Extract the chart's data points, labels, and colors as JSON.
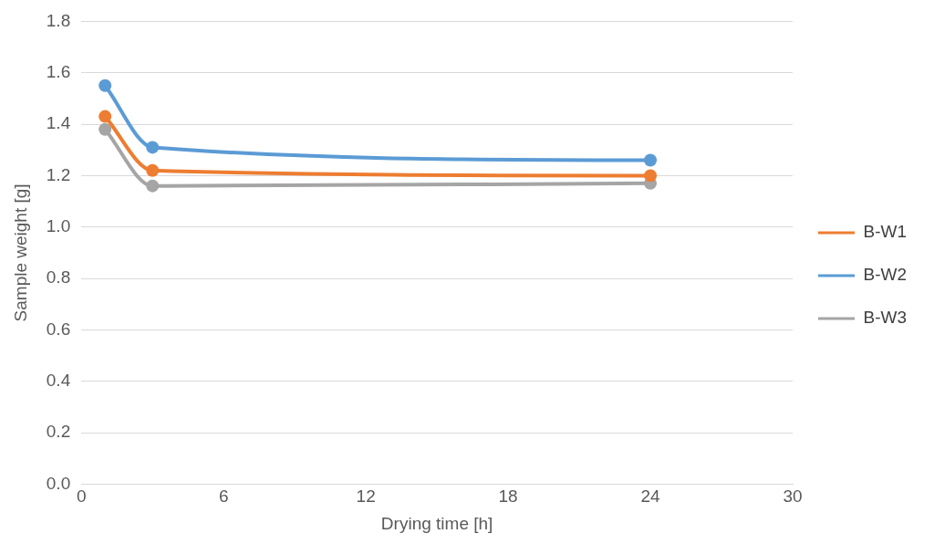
{
  "chart_data": {
    "type": "line",
    "xlabel": "Drying time [h]",
    "ylabel": "Sample weight [g]",
    "x": [
      1,
      3,
      24
    ],
    "series": [
      {
        "name": "B-W1",
        "color": "#ed7d31",
        "values": [
          1.43,
          1.22,
          1.2
        ]
      },
      {
        "name": "B-W2",
        "color": "#5b9bd5",
        "values": [
          1.55,
          1.31,
          1.26
        ]
      },
      {
        "name": "B-W3",
        "color": "#a5a5a5",
        "values": [
          1.38,
          1.16,
          1.17
        ]
      }
    ],
    "xlim": [
      0,
      30
    ],
    "xticks": [
      0,
      6,
      12,
      18,
      24,
      30
    ],
    "ylim": [
      0,
      1.8
    ],
    "yticks": [
      {
        "value": 0,
        "label": "0.0"
      },
      0.2,
      0.4,
      0.6,
      0.8,
      {
        "value": 1,
        "label": "1.0"
      },
      1.2,
      1.4,
      1.6,
      1.8
    ],
    "grid": "y",
    "legend": "right",
    "marker": "circle",
    "line_style": "solid"
  }
}
